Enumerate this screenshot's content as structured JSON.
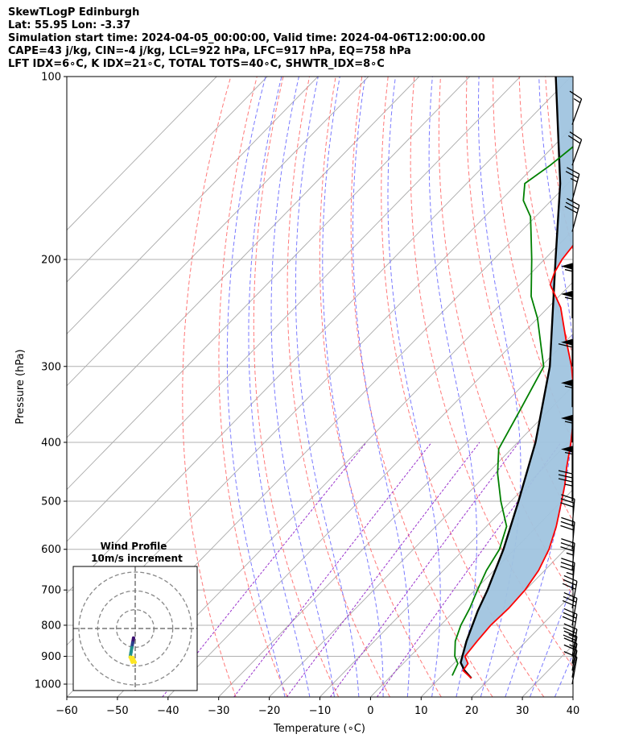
{
  "header": {
    "title": "SkewTLogP Edinburgh",
    "location": "Lat: 55.95   Lon: -3.37",
    "times": "Simulation start time: 2024-04-05_00:00:00, Valid time: 2024-04-06T12:00:00.00",
    "params1": "CAPE=43 j/kg, CIN=-4 j/kg, LCL=922 hPa, LFC=917 hPa, EQ=758 hPa",
    "params2": "LFT IDX=6∘C, K IDX=21∘C, TOTAL TOTS=40∘C, SHWTR_IDX=8∘C"
  },
  "chart_data": {
    "type": "skewt-logp",
    "xlabel": "Temperature (∘C)",
    "ylabel": "Pressure (hPa)",
    "xlim": [
      -60,
      40
    ],
    "ylim": [
      1050,
      100
    ],
    "x_ticks": [
      "−60",
      "−50",
      "−40",
      "−30",
      "−20",
      "−10",
      "0",
      "10",
      "20",
      "30",
      "40"
    ],
    "p_ticks": [
      {
        "p": 100,
        "label": "100"
      },
      {
        "p": 200,
        "label": "200"
      },
      {
        "p": 300,
        "label": "300"
      },
      {
        "p": 400,
        "label": "400"
      },
      {
        "p": 500,
        "label": "500"
      },
      {
        "p": 600,
        "label": "600"
      },
      {
        "p": 700,
        "label": "700"
      },
      {
        "p": 800,
        "label": "800"
      },
      {
        "p": 900,
        "label": "900"
      },
      {
        "p": 1000,
        "label": "1000"
      }
    ],
    "grid": true,
    "colors": {
      "temperature": "#ff0000",
      "dewpoint": "#008000",
      "parcel": "#000000",
      "cape_fill": "#a0c4df",
      "dry_adiabat": "#ff6a6a",
      "moist_adiabat": "#6b6bff",
      "mixing_ratio": "#9932cc",
      "isotherm": "#aaaaaa"
    },
    "temperature": [
      [
        978,
        16.3
      ],
      [
        950,
        13.2
      ],
      [
        925,
        12.8
      ],
      [
        900,
        10.8
      ],
      [
        850,
        10.3
      ],
      [
        800,
        9.9
      ],
      [
        750,
        10.2
      ],
      [
        700,
        9.9
      ],
      [
        650,
        8.8
      ],
      [
        600,
        6.8
      ],
      [
        550,
        3.8
      ],
      [
        500,
        0.0
      ],
      [
        470,
        -2.5
      ],
      [
        440,
        -5.5
      ],
      [
        400,
        -9.5
      ],
      [
        350,
        -15.5
      ],
      [
        300,
        -24.0
      ],
      [
        270,
        -30.5
      ],
      [
        240,
        -37.5
      ],
      [
        220,
        -44.0
      ],
      [
        210,
        -45.5
      ],
      [
        200,
        -46.5
      ],
      [
        190,
        -47.0
      ],
      [
        180,
        -47.8
      ],
      [
        170,
        -48.5
      ],
      [
        160,
        -49.5
      ],
      [
        155,
        -50.0
      ],
      [
        150,
        -50.0
      ],
      [
        140,
        -51.0
      ],
      [
        130,
        -52.5
      ],
      [
        120,
        -54.0
      ],
      [
        110,
        -57.5
      ],
      [
        100,
        -61.0
      ]
    ],
    "dewpoint": [
      [
        968,
        12.0
      ],
      [
        950,
        11.5
      ],
      [
        925,
        10.8
      ],
      [
        900,
        8.8
      ],
      [
        850,
        6.0
      ],
      [
        800,
        4.0
      ],
      [
        750,
        2.5
      ],
      [
        700,
        0.5
      ],
      [
        650,
        -1.5
      ],
      [
        600,
        -3.0
      ],
      [
        550,
        -6.0
      ],
      [
        500,
        -12.0
      ],
      [
        450,
        -18.0
      ],
      [
        410,
        -22.5
      ],
      [
        350,
        -26.0
      ],
      [
        300,
        -29.5
      ],
      [
        280,
        -33.5
      ],
      [
        250,
        -40.0
      ],
      [
        230,
        -45.5
      ],
      [
        200,
        -52.5
      ],
      [
        180,
        -58.0
      ],
      [
        170,
        -61.0
      ],
      [
        160,
        -65.5
      ],
      [
        150,
        -68.5
      ],
      [
        140,
        -67.0
      ],
      [
        130,
        -66.0
      ],
      [
        120,
        -66.0
      ],
      [
        110,
        -65.5
      ],
      [
        100,
        -64.0
      ]
    ],
    "parcel": [
      [
        978,
        16.3
      ],
      [
        950,
        13.5
      ],
      [
        922,
        11.2
      ],
      [
        850,
        8.2
      ],
      [
        758,
        4.6
      ],
      [
        700,
        2.5
      ],
      [
        600,
        -2.2
      ],
      [
        500,
        -8.5
      ],
      [
        400,
        -16.5
      ],
      [
        300,
        -28.3
      ],
      [
        200,
        -47.8
      ],
      [
        150,
        -61.5
      ],
      [
        100,
        -83.0
      ]
    ],
    "wind_barbs": [
      {
        "p": 1000,
        "speed_kt": 10,
        "dir_deg": 10
      },
      {
        "p": 975,
        "speed_kt": 10,
        "dir_deg": 10
      },
      {
        "p": 950,
        "speed_kt": 15,
        "dir_deg": 10
      },
      {
        "p": 925,
        "speed_kt": 20,
        "dir_deg": 10
      },
      {
        "p": 900,
        "speed_kt": 25,
        "dir_deg": 10
      },
      {
        "p": 850,
        "speed_kt": 30,
        "dir_deg": 10
      },
      {
        "p": 800,
        "speed_kt": 30,
        "dir_deg": 10
      },
      {
        "p": 750,
        "speed_kt": 30,
        "dir_deg": 10
      },
      {
        "p": 700,
        "speed_kt": 35,
        "dir_deg": 5
      },
      {
        "p": 650,
        "speed_kt": 35,
        "dir_deg": 5
      },
      {
        "p": 600,
        "speed_kt": 30,
        "dir_deg": 5
      },
      {
        "p": 550,
        "speed_kt": 30,
        "dir_deg": 5
      },
      {
        "p": 500,
        "speed_kt": 35,
        "dir_deg": 0
      },
      {
        "p": 450,
        "speed_kt": 55,
        "dir_deg": 0
      },
      {
        "p": 400,
        "speed_kt": 55,
        "dir_deg": 0
      },
      {
        "p": 350,
        "speed_kt": 55,
        "dir_deg": 0
      },
      {
        "p": 300,
        "speed_kt": 60,
        "dir_deg": 0
      },
      {
        "p": 250,
        "speed_kt": 55,
        "dir_deg": 0
      },
      {
        "p": 225,
        "speed_kt": 55,
        "dir_deg": 0
      },
      {
        "p": 180,
        "speed_kt": 30,
        "dir_deg": 15
      },
      {
        "p": 160,
        "speed_kt": 25,
        "dir_deg": 15
      },
      {
        "p": 140,
        "speed_kt": 20,
        "dir_deg": 20
      },
      {
        "p": 120,
        "speed_kt": 15,
        "dir_deg": 20
      }
    ],
    "hodograph": {
      "title": "Wind Profile",
      "subtitle": "10m/s increment",
      "rings_ms": [
        10,
        20,
        30
      ],
      "range_ms": 33
    }
  }
}
